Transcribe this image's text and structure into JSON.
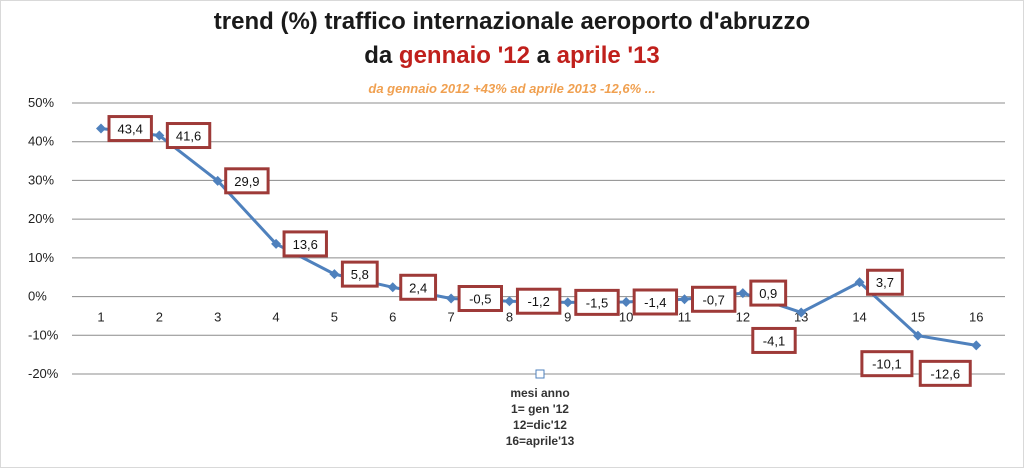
{
  "title": {
    "line1": "trend (%) traffico internazionale aeroporto d'abruzzo",
    "line2_prefix": "da ",
    "line2_from": "gennaio '12",
    "line2_mid": " a ",
    "line2_to": "aprile '13"
  },
  "subtitle": "da gennaio 2012 +43% ad aprile 2013 -12,6% ...",
  "axis_note": [
    "mesi anno",
    "1= gen '12",
    "12=dic'12",
    "16=aprile'13"
  ],
  "colors": {
    "line": "#4f81bd",
    "label_border": "#9e3a38",
    "title_accent": "#c0201c",
    "subtitle": "#f0a050",
    "gridline": "#8c8c8c"
  },
  "chart_data": {
    "type": "line",
    "x": [
      1,
      2,
      3,
      4,
      5,
      6,
      7,
      8,
      9,
      10,
      11,
      12,
      13,
      14,
      15,
      16
    ],
    "values": [
      43.4,
      41.6,
      29.9,
      13.6,
      5.8,
      2.4,
      -0.5,
      -1.2,
      -1.5,
      -1.4,
      -0.7,
      0.9,
      -4.1,
      3.7,
      -10.1,
      -12.6
    ],
    "value_labels": [
      "43,4",
      "41,6",
      "29,9",
      "13,6",
      "5,8",
      "2,4",
      "-0,5",
      "-1,2",
      "-1,5",
      "-1,4",
      "-0,7",
      "0,9",
      "-4,1",
      "3,7",
      "-10,1",
      "-12,6"
    ],
    "y_ticks": [
      50,
      40,
      30,
      20,
      10,
      0,
      -10,
      -20
    ],
    "y_tick_labels": [
      "50%",
      "40%",
      "30%",
      "20%",
      "10%",
      "0%",
      "-10%",
      "-20%"
    ],
    "x_tick_labels": [
      "1",
      "2",
      "3",
      "4",
      "5",
      "6",
      "7",
      "8",
      "9",
      "10",
      "11",
      "12",
      "13",
      "14",
      "15",
      "16"
    ],
    "ylim": [
      -20,
      50
    ],
    "grid": true,
    "legend": "none",
    "marker": "diamond"
  }
}
